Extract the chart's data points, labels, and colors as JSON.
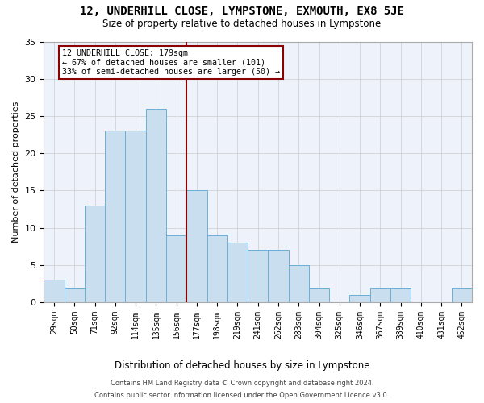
{
  "title": "12, UNDERHILL CLOSE, LYMPSTONE, EXMOUTH, EX8 5JE",
  "subtitle": "Size of property relative to detached houses in Lympstone",
  "xlabel": "Distribution of detached houses by size in Lympstone",
  "ylabel": "Number of detached properties",
  "bin_labels": [
    "29sqm",
    "50sqm",
    "71sqm",
    "92sqm",
    "114sqm",
    "135sqm",
    "156sqm",
    "177sqm",
    "198sqm",
    "219sqm",
    "241sqm",
    "262sqm",
    "283sqm",
    "304sqm",
    "325sqm",
    "346sqm",
    "367sqm",
    "389sqm",
    "410sqm",
    "431sqm",
    "452sqm"
  ],
  "bar_heights": [
    3,
    2,
    13,
    23,
    23,
    26,
    9,
    15,
    9,
    8,
    7,
    7,
    5,
    2,
    0,
    1,
    2,
    2,
    0,
    0,
    2
  ],
  "bar_color": "#c9dff0",
  "bar_edgecolor": "#6baed6",
  "vline_x": 6.5,
  "vline_color": "#8b0000",
  "annotation_text": "12 UNDERHILL CLOSE: 179sqm\n← 67% of detached houses are smaller (101)\n33% of semi-detached houses are larger (50) →",
  "annotation_box_color": "#ffffff",
  "annotation_box_edgecolor": "#8b0000",
  "ylim": [
    0,
    35
  ],
  "yticks": [
    0,
    5,
    10,
    15,
    20,
    25,
    30,
    35
  ],
  "bg_color": "#eef2fb",
  "grid_color": "#cccccc",
  "footer1": "Contains HM Land Registry data © Crown copyright and database right 2024.",
  "footer2": "Contains public sector information licensed under the Open Government Licence v3.0."
}
